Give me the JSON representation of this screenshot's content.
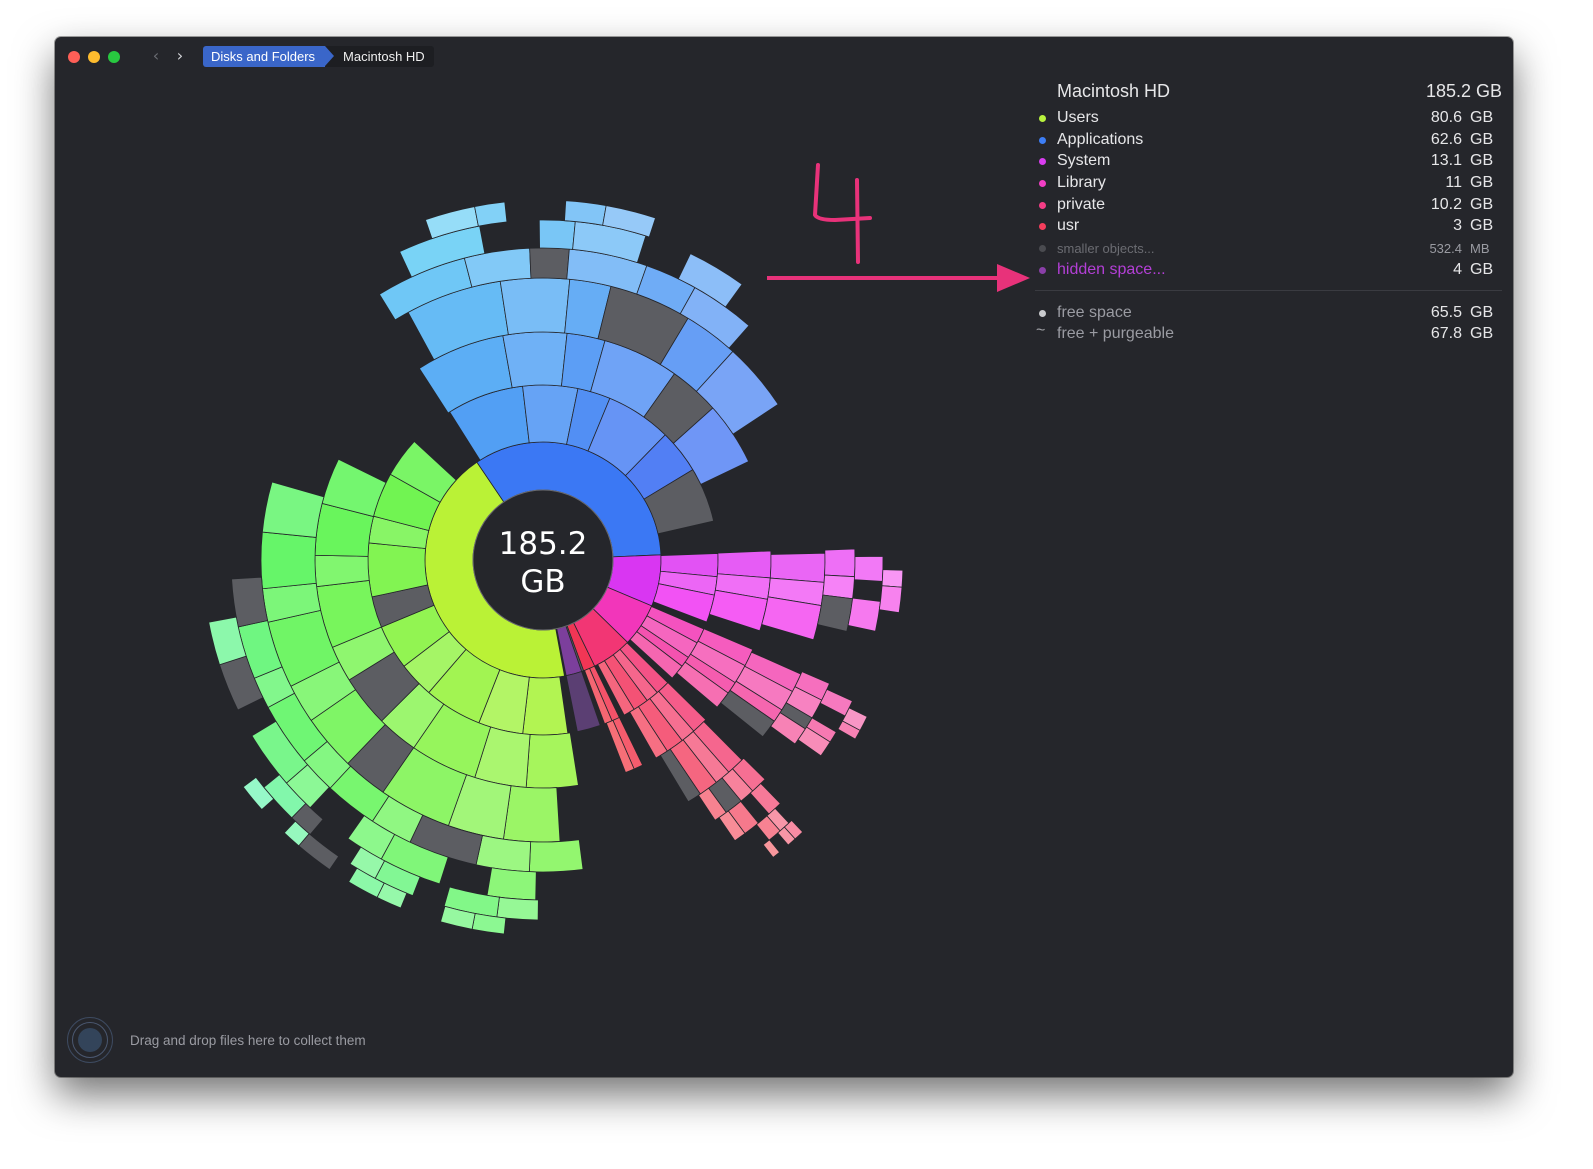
{
  "window": {
    "breadcrumb": [
      "Disks and Folders",
      "Macintosh HD"
    ],
    "nav": {
      "back_icon": "chevron-left-icon",
      "forward_icon": "chevron-right-icon"
    }
  },
  "chart_center": {
    "line1": "185.2",
    "line2": "GB"
  },
  "panel": {
    "title": "Macintosh HD",
    "total": "185.2 GB",
    "items": [
      {
        "name": "Users",
        "value": "80.6",
        "unit": "GB",
        "color": "#b8f23e"
      },
      {
        "name": "Applications",
        "value": "62.6",
        "unit": "GB",
        "color": "#3d7ef5"
      },
      {
        "name": "System",
        "value": "13.1",
        "unit": "GB",
        "color": "#d93df0"
      },
      {
        "name": "Library",
        "value": "11",
        "unit": "GB",
        "color": "#f23ec4"
      },
      {
        "name": "private",
        "value": "10.2",
        "unit": "GB",
        "color": "#f53d86"
      },
      {
        "name": "usr",
        "value": "3",
        "unit": "GB",
        "color": "#f53d5c"
      },
      {
        "name": "smaller objects...",
        "value": "532.4",
        "unit": "MB",
        "color": "#4a4b50"
      },
      {
        "name": "hidden space...",
        "value": "4",
        "unit": "GB",
        "color": "#8a3fa8"
      }
    ],
    "free": [
      {
        "name": "free space",
        "value": "65.5",
        "unit": "GB",
        "marker": "dot"
      },
      {
        "name": "free + purgeable",
        "value": "67.8",
        "unit": "GB",
        "marker": "tilde"
      }
    ]
  },
  "annotation": {
    "text": "4"
  },
  "footer": {
    "hint": "Drag and drop files here to collect them"
  },
  "chart_data": {
    "type": "sunburst",
    "total_gb": 185.2,
    "segments": [
      {
        "name": "Users",
        "value_gb": 80.6
      },
      {
        "name": "Applications",
        "value_gb": 62.6
      },
      {
        "name": "System",
        "value_gb": 13.1
      },
      {
        "name": "Library",
        "value_gb": 11
      },
      {
        "name": "private",
        "value_gb": 10.2
      },
      {
        "name": "usr",
        "value_gb": 3
      },
      {
        "name": "smaller objects...",
        "value_gb": 0.5324
      },
      {
        "name": "hidden space...",
        "value_gb": 4
      }
    ]
  }
}
